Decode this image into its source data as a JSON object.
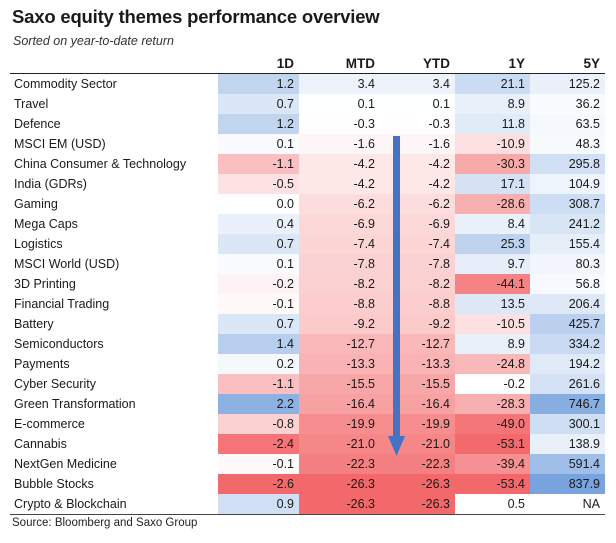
{
  "header": {
    "title": "Saxo equity themes performance overview",
    "subtitle": "Sorted on year-to-date return"
  },
  "source": "Source: Bloomberg and Saxo Group",
  "chart_data": {
    "type": "table",
    "columns": [
      "",
      "1D",
      "MTD",
      "YTD",
      "1Y",
      "5Y"
    ],
    "rows": [
      {
        "name": "Commodity Sector",
        "values": [
          "1.2",
          "3.4",
          "3.4",
          "21.1",
          "125.2"
        ]
      },
      {
        "name": "Travel",
        "values": [
          "0.7",
          "0.1",
          "0.1",
          "8.9",
          "36.2"
        ]
      },
      {
        "name": "Defence",
        "values": [
          "1.2",
          "-0.3",
          "-0.3",
          "11.8",
          "63.5"
        ]
      },
      {
        "name": "MSCI EM (USD)",
        "values": [
          "0.1",
          "-1.6",
          "-1.6",
          "-10.9",
          "48.3"
        ]
      },
      {
        "name": "China Consumer & Technology",
        "values": [
          "-1.1",
          "-4.2",
          "-4.2",
          "-30.3",
          "295.8"
        ]
      },
      {
        "name": "India (GDRs)",
        "values": [
          "-0.5",
          "-4.2",
          "-4.2",
          "17.1",
          "104.9"
        ]
      },
      {
        "name": "Gaming",
        "values": [
          "0.0",
          "-6.2",
          "-6.2",
          "-28.6",
          "308.7"
        ]
      },
      {
        "name": "Mega Caps",
        "values": [
          "0.4",
          "-6.9",
          "-6.9",
          "8.4",
          "241.2"
        ]
      },
      {
        "name": "Logistics",
        "values": [
          "0.7",
          "-7.4",
          "-7.4",
          "25.3",
          "155.4"
        ]
      },
      {
        "name": "MSCI World (USD)",
        "values": [
          "0.1",
          "-7.8",
          "-7.8",
          "9.7",
          "80.3"
        ]
      },
      {
        "name": "3D Printing",
        "values": [
          "-0.2",
          "-8.2",
          "-8.2",
          "-44.1",
          "56.8"
        ]
      },
      {
        "name": "Financial Trading",
        "values": [
          "-0.1",
          "-8.8",
          "-8.8",
          "13.5",
          "206.4"
        ]
      },
      {
        "name": "Battery",
        "values": [
          "0.7",
          "-9.2",
          "-9.2",
          "-10.5",
          "425.7"
        ]
      },
      {
        "name": "Semiconductors",
        "values": [
          "1.4",
          "-12.7",
          "-12.7",
          "8.9",
          "334.2"
        ]
      },
      {
        "name": "Payments",
        "values": [
          "0.2",
          "-13.3",
          "-13.3",
          "-24.8",
          "194.2"
        ]
      },
      {
        "name": "Cyber Security",
        "values": [
          "-1.1",
          "-15.5",
          "-15.5",
          "-0.2",
          "261.6"
        ]
      },
      {
        "name": "Green Transformation",
        "values": [
          "2.2",
          "-16.4",
          "-16.4",
          "-28.3",
          "746.7"
        ]
      },
      {
        "name": "E-commerce",
        "values": [
          "-0.8",
          "-19.9",
          "-19.9",
          "-49.0",
          "300.1"
        ]
      },
      {
        "name": "Cannabis",
        "values": [
          "-2.4",
          "-21.0",
          "-21.0",
          "-53.1",
          "138.9"
        ]
      },
      {
        "name": "NextGen Medicine",
        "values": [
          "-0.1",
          "-22.3",
          "-22.3",
          "-39.4",
          "591.4"
        ]
      },
      {
        "name": "Bubble Stocks",
        "values": [
          "-2.6",
          "-26.3",
          "-26.3",
          "-53.4",
          "837.9"
        ]
      },
      {
        "name": "Crypto & Blockchain",
        "values": [
          "0.9",
          "-26.3",
          "-26.3",
          "0.5",
          "NA"
        ]
      }
    ],
    "colors": {
      "positive": "#5b8fd6",
      "negative": "#f0484b",
      "neutral": "#ffffff",
      "arrow": "#4472c4"
    }
  }
}
